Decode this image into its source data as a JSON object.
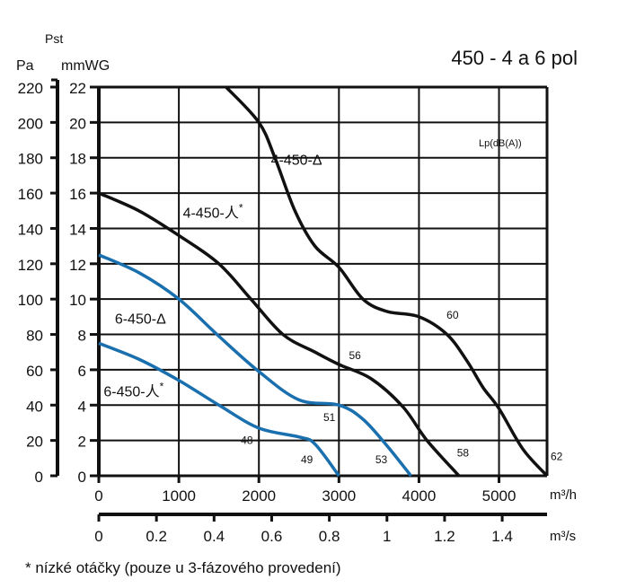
{
  "chart_data": {
    "type": "line",
    "title": "450 - 4 a 6 pol",
    "ylabel_top": "Pst",
    "ylabel_pa": "Pa",
    "ylabel_mm": "mmWG",
    "xlabel": "m³/h",
    "xlabel2": "m³/s",
    "xlim": [
      0,
      5600
    ],
    "ylim": [
      0,
      22
    ],
    "grid": true,
    "x_ticks": [
      "0",
      "1000",
      "2000",
      "3000",
      "4000",
      "5000"
    ],
    "x_tick_values": [
      0,
      1000,
      2000,
      3000,
      4000,
      5000
    ],
    "x2_ticks": [
      "0",
      "0.2",
      "0.4",
      "0.6",
      "0.8",
      "1",
      "1.2",
      "1.4"
    ],
    "x2_tick_values": [
      0,
      0.2,
      0.4,
      0.6,
      0.8,
      1,
      1.2,
      1.4
    ],
    "y_ticks_mm": [
      "0",
      "2",
      "4",
      "6",
      "8",
      "10",
      "12",
      "14",
      "16",
      "18",
      "20",
      "22"
    ],
    "y_ticks_pa": [
      "0",
      "20",
      "40",
      "60",
      "80",
      "100",
      "120",
      "140",
      "160",
      "180",
      "200",
      "220"
    ],
    "noise_label": "Lp(dB(A))",
    "series": [
      {
        "name": "4-450-Δ",
        "color": "#111111",
        "label_at": [
          2150,
          17.6
        ],
        "points": [
          [
            1590,
            22
          ],
          [
            2000,
            20
          ],
          [
            2200,
            18
          ],
          [
            2450,
            15
          ],
          [
            2700,
            13
          ],
          [
            3000,
            11.8
          ],
          [
            3300,
            10
          ],
          [
            3600,
            9.3
          ],
          [
            4000,
            9
          ],
          [
            4350,
            8
          ],
          [
            4600,
            6.5
          ],
          [
            4800,
            5
          ],
          [
            5000,
            3.8
          ],
          [
            5300,
            1.5
          ],
          [
            5600,
            0
          ]
        ]
      },
      {
        "name": "4-450-人",
        "star": "*",
        "color": "#111111",
        "label_at": [
          1050,
          14.6
        ],
        "points": [
          [
            0,
            16
          ],
          [
            500,
            15
          ],
          [
            1000,
            13.6
          ],
          [
            1500,
            12
          ],
          [
            1900,
            10
          ],
          [
            2300,
            8
          ],
          [
            2700,
            7
          ],
          [
            3000,
            6.3
          ],
          [
            3400,
            5.5
          ],
          [
            3800,
            3.9
          ],
          [
            4100,
            2
          ],
          [
            4500,
            0
          ]
        ]
      },
      {
        "name": "6-450-Δ",
        "color": "#1a6fae",
        "label_at": [
          200,
          8.6
        ],
        "points": [
          [
            0,
            12.5
          ],
          [
            500,
            11.5
          ],
          [
            1000,
            10
          ],
          [
            1500,
            7.9
          ],
          [
            2000,
            5.9
          ],
          [
            2500,
            4.3
          ],
          [
            3000,
            4
          ],
          [
            3300,
            3.2
          ],
          [
            3600,
            1.7
          ],
          [
            3900,
            0
          ]
        ]
      },
      {
        "name": "6-450-人",
        "star": "*",
        "color": "#1a6fae",
        "label_at": [
          60,
          4.5
        ],
        "points": [
          [
            0,
            7.5
          ],
          [
            500,
            6.6
          ],
          [
            1000,
            5.4
          ],
          [
            1500,
            4
          ],
          [
            2000,
            2.7
          ],
          [
            2500,
            2.2
          ],
          [
            2700,
            1.8
          ],
          [
            3000,
            0
          ]
        ]
      }
    ],
    "annotations": [
      {
        "text": "60",
        "x": 4420,
        "y": 8.9
      },
      {
        "text": "56",
        "x": 3200,
        "y": 6.6
      },
      {
        "text": "58",
        "x": 4550,
        "y": 1.1
      },
      {
        "text": "62",
        "x": 5720,
        "y": 0.9
      },
      {
        "text": "51",
        "x": 2880,
        "y": 3.1
      },
      {
        "text": "48",
        "x": 1850,
        "y": 1.8
      },
      {
        "text": "49",
        "x": 2600,
        "y": 0.7
      },
      {
        "text": "53",
        "x": 3530,
        "y": 0.7
      }
    ]
  },
  "footnote": "* nízké otáčky (pouze u 3-fázového provedení)"
}
